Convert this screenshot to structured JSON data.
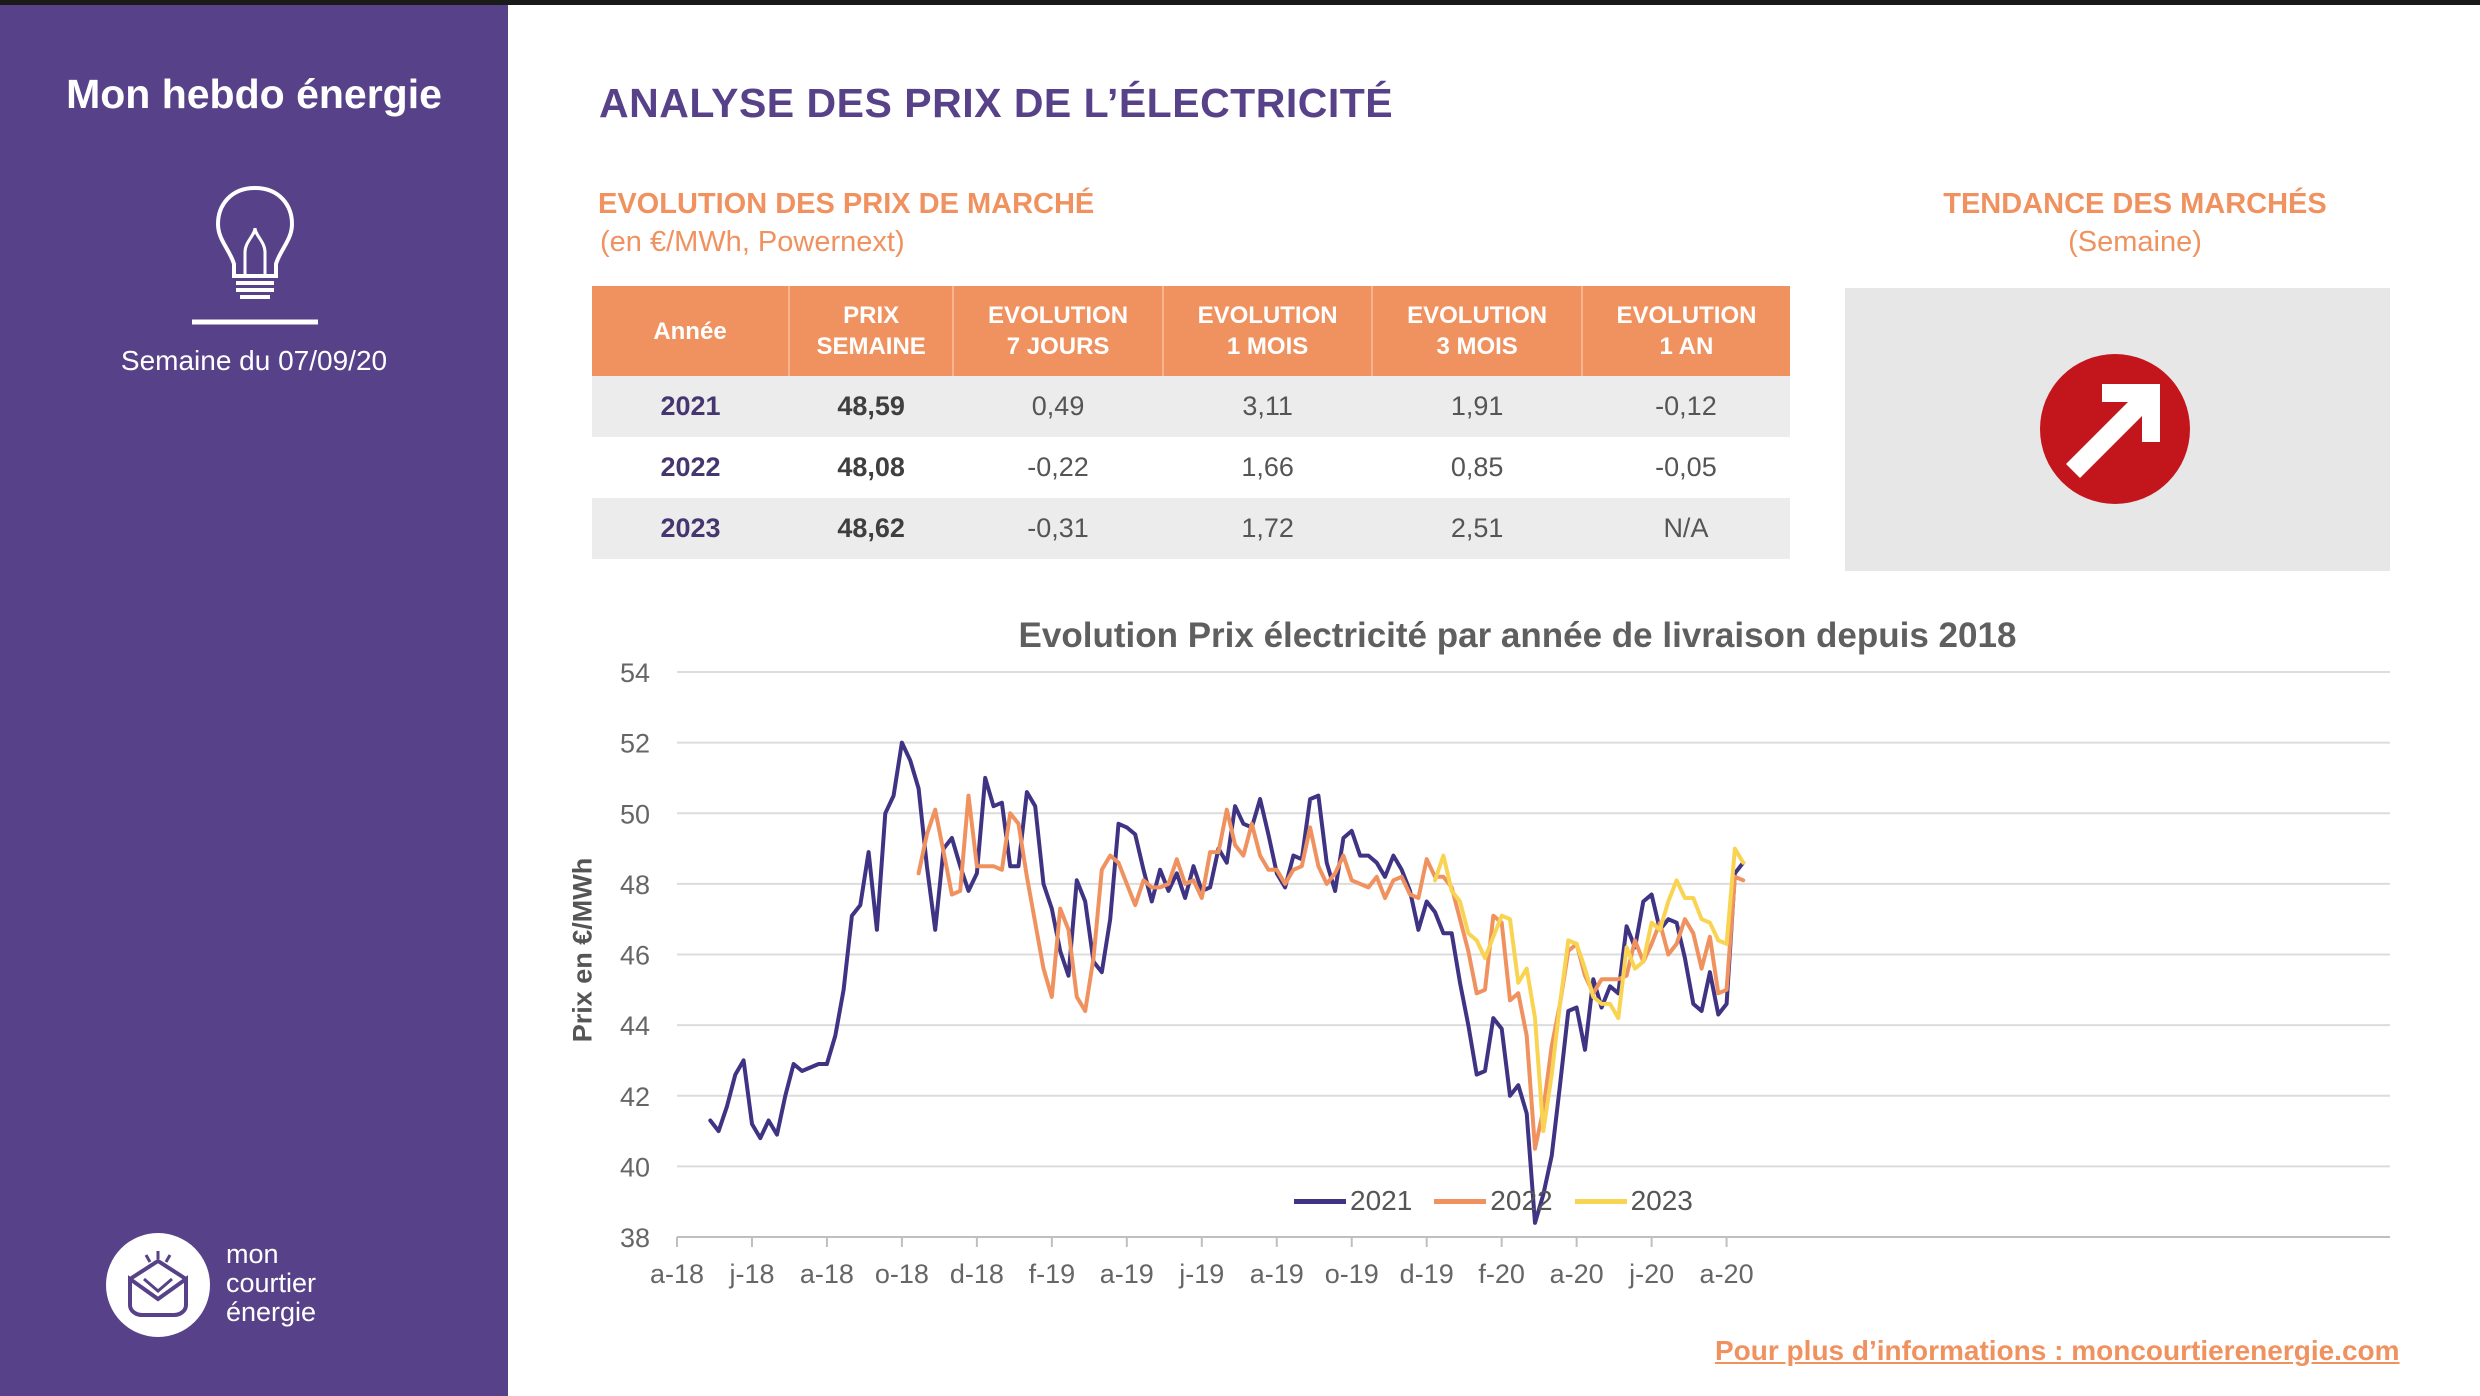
{
  "sidebar": {
    "brand": "Mon hebdo énergie",
    "week": "Semaine du 07/09/20",
    "logo_lines": [
      "mon",
      "courtier",
      "énergie"
    ]
  },
  "header": {
    "title": "ANALYSE DES PRIX DE L’ÉLECTRICITÉ",
    "market_title": "EVOLUTION DES PRIX DE MARCHÉ",
    "market_sub": "(en €/MWh, Powernext)",
    "trend_title": "TENDANCE DES MARCHÉS",
    "trend_sub": "(Semaine)"
  },
  "table": {
    "headers": [
      [
        "Année"
      ],
      [
        "PRIX",
        "SEMAINE"
      ],
      [
        "EVOLUTION",
        "7 JOURS"
      ],
      [
        "EVOLUTION",
        "1 MOIS"
      ],
      [
        "EVOLUTION",
        "3 MOIS"
      ],
      [
        "EVOLUTION",
        "1 AN"
      ]
    ],
    "rows": [
      [
        "2021",
        "48,59",
        "0,49",
        "3,11",
        "1,91",
        "-0,12"
      ],
      [
        "2022",
        "48,08",
        "-0,22",
        "1,66",
        "0,85",
        "-0,05"
      ],
      [
        "2023",
        "48,62",
        "-0,31",
        "1,72",
        "2,51",
        "N/A"
      ]
    ]
  },
  "trend": {
    "icon": "arrow-up-right-icon",
    "direction": "up"
  },
  "colors": {
    "purple": "#57428a",
    "orange": "#f0925f",
    "s2021": "#3f3384",
    "s2022": "#f0925f",
    "s2023": "#f9d452"
  },
  "chart_data": {
    "type": "line",
    "title": "Evolution Prix électricité par année de livraison depuis 2018",
    "ylabel": "Prix en €/MWh",
    "xlabel": "",
    "ylim": [
      38,
      54
    ],
    "yticks": [
      38,
      40,
      42,
      44,
      46,
      48,
      50,
      52,
      54
    ],
    "xticks": [
      "a-18",
      "j-18",
      "a-18",
      "o-18",
      "d-18",
      "f-19",
      "a-19",
      "j-19",
      "a-19",
      "o-19",
      "d-19",
      "f-20",
      "a-20",
      "j-20",
      "a-20"
    ],
    "xtick_weeks": [
      0,
      9,
      18,
      27,
      36,
      45,
      54,
      63,
      72,
      81,
      90,
      99,
      108,
      117,
      126
    ],
    "x_start": "2018-04",
    "grid": "horizontal",
    "legend": "bottom-center",
    "series": [
      {
        "name": "2021",
        "color": "#3f3384",
        "start_week": 4,
        "values": [
          41.3,
          41.0,
          41.7,
          42.6,
          43.0,
          41.2,
          40.8,
          41.3,
          40.9,
          42.0,
          42.9,
          42.7,
          42.8,
          42.9,
          42.9,
          43.7,
          45.0,
          47.1,
          47.4,
          48.9,
          46.7,
          50.0,
          50.5,
          52.0,
          51.5,
          50.7,
          48.5,
          46.7,
          49.0,
          49.3,
          48.5,
          47.8,
          48.3,
          51.0,
          50.2,
          50.3,
          48.5,
          48.5,
          50.6,
          50.2,
          48.0,
          47.3,
          46.1,
          45.4,
          48.1,
          47.5,
          45.8,
          45.5,
          47.0,
          49.7,
          49.6,
          49.4,
          48.4,
          47.5,
          48.4,
          47.8,
          48.3,
          47.6,
          48.5,
          47.8,
          47.9,
          49.0,
          48.6,
          50.2,
          49.7,
          49.6,
          50.4,
          49.4,
          48.3,
          47.9,
          48.8,
          48.7,
          50.4,
          50.5,
          48.6,
          47.8,
          49.3,
          49.5,
          48.8,
          48.8,
          48.6,
          48.2,
          48.8,
          48.4,
          47.8,
          46.7,
          47.5,
          47.2,
          46.6,
          46.6,
          45.2,
          44.0,
          42.6,
          42.7,
          44.2,
          43.9,
          42.0,
          42.3,
          41.5,
          38.4,
          39.2,
          40.3,
          42.3,
          44.4,
          44.5,
          43.3,
          45.3,
          44.5,
          45.1,
          44.9,
          46.8,
          46.2,
          47.5,
          47.7,
          46.7,
          47.0,
          46.9,
          45.9,
          44.6,
          44.4,
          45.5,
          44.3,
          44.6,
          48.3,
          48.6
        ]
      },
      {
        "name": "2022",
        "color": "#f0925f",
        "start_week": 29,
        "values": [
          48.3,
          49.4,
          50.1,
          48.9,
          47.7,
          47.8,
          50.5,
          48.5,
          48.5,
          48.5,
          48.4,
          50.0,
          49.7,
          48.2,
          46.9,
          45.6,
          44.8,
          47.3,
          46.7,
          44.8,
          44.4,
          45.9,
          48.4,
          48.8,
          48.6,
          48.0,
          47.4,
          48.1,
          47.9,
          47.9,
          48.0,
          48.7,
          48.0,
          48.1,
          47.6,
          48.9,
          48.9,
          50.1,
          49.1,
          48.8,
          49.7,
          48.8,
          48.4,
          48.4,
          48.0,
          48.4,
          48.5,
          49.6,
          48.5,
          48.0,
          48.3,
          48.8,
          48.1,
          48.0,
          47.9,
          48.2,
          47.6,
          48.1,
          48.2,
          47.7,
          47.6,
          48.7,
          48.2,
          48.2,
          47.9,
          47.0,
          46.1,
          44.9,
          45.0,
          47.1,
          46.9,
          44.7,
          44.9,
          43.7,
          40.5,
          41.6,
          43.4,
          44.6,
          46.1,
          46.3,
          45.4,
          44.9,
          45.3,
          45.3,
          45.3,
          45.4,
          46.4,
          45.8,
          46.3,
          46.9,
          46.0,
          46.3,
          47.0,
          46.6,
          45.6,
          46.5,
          44.9,
          45.0,
          48.2,
          48.1
        ]
      },
      {
        "name": "2023",
        "color": "#f9d452",
        "start_week": 91,
        "values": [
          48.1,
          48.8,
          47.8,
          47.5,
          46.6,
          46.4,
          45.9,
          46.5,
          47.1,
          47.0,
          45.2,
          45.6,
          44.2,
          41.0,
          42.6,
          44.6,
          46.4,
          46.3,
          45.6,
          44.8,
          44.6,
          44.6,
          44.2,
          46.2,
          45.6,
          45.8,
          46.9,
          46.7,
          47.5,
          48.1,
          47.6,
          47.6,
          47.0,
          46.9,
          46.4,
          46.3,
          49.0,
          48.6
        ]
      }
    ]
  },
  "footer": {
    "link": "Pour plus d’informations : moncourtierenergie.com"
  }
}
